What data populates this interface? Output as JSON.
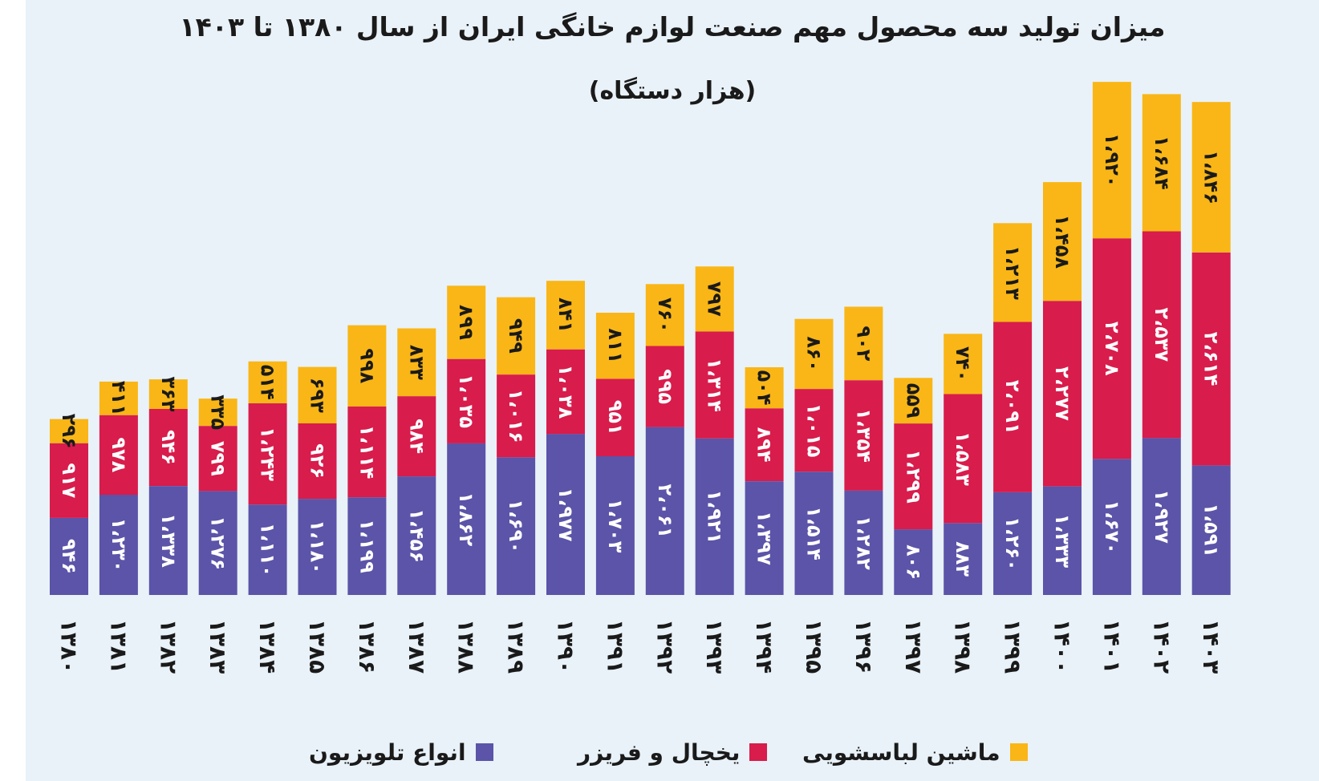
{
  "chart_data": {
    "type": "bar",
    "stacked": true,
    "title": "میزان تولید سه محصول مهم صنعت لوازم خانگی ایران از سال ۱۳۸۰ تا ۱۴۰۳",
    "subtitle": "(هزار دستگاه)",
    "categories": [
      "۱۳۸۰",
      "۱۳۸۱",
      "۱۳۸۲",
      "۱۳۸۳",
      "۱۳۸۴",
      "۱۳۸۵",
      "۱۳۸۶",
      "۱۳۸۷",
      "۱۳۸۸",
      "۱۳۸۹",
      "۱۳۹۰",
      "۱۳۹۱",
      "۱۳۹۲",
      "۱۳۹۳",
      "۱۳۹۴",
      "۱۳۹۵",
      "۱۳۹۶",
      "۱۳۹۷",
      "۱۳۹۸",
      "۱۳۹۹",
      "۱۴۰۰",
      "۱۴۰۱",
      "۱۴۰۲",
      "۱۴۰۳"
    ],
    "series": [
      {
        "name": "انواع تلویزیون",
        "color": "#5b54a8",
        "values": [
          946,
          1230,
          1338,
          1276,
          1110,
          1180,
          1199,
          1456,
          1862,
          1690,
          1977,
          1703,
          2061,
          1921,
          1397,
          1514,
          1282,
          806,
          883,
          1260,
          1333,
          1670,
          1927,
          1591
        ],
        "labels": [
          "۹۴۶",
          "۱،۲۳۰",
          "۱،۳۳۸",
          "۱،۲۷۶",
          "۱،۱۱۰",
          "۱،۱۸۰",
          "۱،۱۹۹",
          "۱،۴۵۶",
          "۱،۸۶۲",
          "۱،۶۹۰",
          "۱،۹۷۷",
          "۱،۷۰۳",
          "۲،۰۶۱",
          "۱،۹۲۱",
          "۱،۳۹۷",
          "۱،۵۱۴",
          "۱،۲۸۲",
          "۸۰۶",
          "۸۸۳",
          "۱،۲۶۰",
          "۱،۳۳۳",
          "۱،۶۷۰",
          "۱،۹۲۷",
          "۱،۵۹۱"
        ]
      },
      {
        "name": "یخچال و فریزر",
        "color": "#d81c4c",
        "values": [
          917,
          978,
          946,
          799,
          1243,
          926,
          1114,
          984,
          1035,
          1016,
          1038,
          951,
          995,
          1314,
          894,
          1015,
          1354,
          1299,
          1583,
          2091,
          2277,
          2708,
          2537,
          2614
        ],
        "labels": [
          "۹۱۷",
          "۹۷۸",
          "۹۴۶",
          "۷۹۹",
          "۱،۲۴۳",
          "۹۲۶",
          "۱،۱۱۴",
          "۹۸۴",
          "۱،۰۳۵",
          "۱،۰۱۶",
          "۱،۰۳۸",
          "۹۵۱",
          "۹۹۵",
          "۱،۳۱۴",
          "۸۹۴",
          "۱،۰۱۵",
          "۱،۳۵۴",
          "۱،۲۹۹",
          "۱،۵۸۳",
          "۲،۰۹۱",
          "۲،۲۷۷",
          "۲،۷۰۸",
          "۲،۵۳۷",
          "۲،۶۱۴"
        ]
      },
      {
        "name": "ماشین لباسشویی",
        "color": "#f9b616",
        "values": [
          296,
          411,
          363,
          335,
          514,
          693,
          998,
          833,
          899,
          949,
          841,
          811,
          760,
          797,
          504,
          860,
          902,
          559,
          740,
          1213,
          1458,
          1920,
          1684,
          1846
        ],
        "labels": [
          "۲۹۶",
          "۴۱۱",
          "۳۶۳",
          "۳۳۵",
          "۵۱۴",
          "۶۹۳",
          "۹۹۸",
          "۸۳۳",
          "۸۹۹",
          "۹۴۹",
          "۸۴۱",
          "۸۱۱",
          "۷۶۰",
          "۷۹۷",
          "۵۰۴",
          "۸۶۰",
          "۹۰۲",
          "۵۵۹",
          "۷۴۰",
          "۱،۲۱۳",
          "۱،۴۵۸",
          "۱،۹۲۰",
          "۱،۶۸۴",
          "۱،۸۴۶"
        ]
      }
    ],
    "legend_position": "bottom",
    "grid": false
  }
}
